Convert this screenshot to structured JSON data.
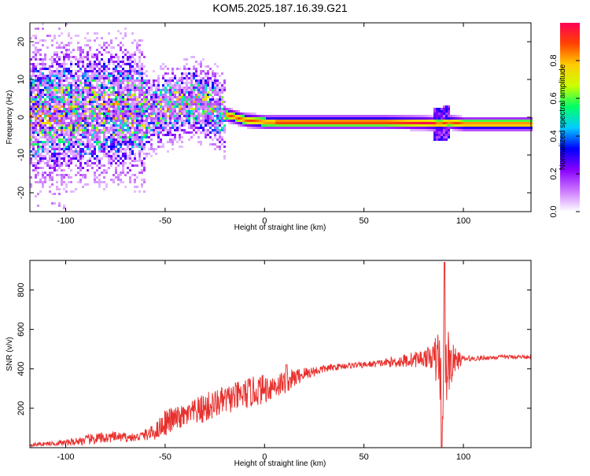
{
  "title": "KOM5.2025.187.16.39.G21",
  "colors": {
    "snr_line": "#e8312e",
    "frame": "#000000",
    "colormap": [
      "#ffffff",
      "#cc77ff",
      "#8800ff",
      "#0000ff",
      "#00ccff",
      "#00ff66",
      "#ccff00",
      "#ffcc00",
      "#ff4400",
      "#ff0055"
    ]
  },
  "chart_data": [
    {
      "id": "spectrogram",
      "type": "heatmap",
      "xlabel": "Height of straight line (km)",
      "ylabel": "Frequency (Hz)",
      "xlim": [
        -118,
        134
      ],
      "ylim": [
        -25,
        25
      ],
      "xticks": [
        -100,
        -50,
        0,
        50,
        100
      ],
      "xtick_labels": [
        "-100",
        "-50",
        "0",
        "50",
        "100"
      ],
      "yticks": [
        -20,
        -10,
        0,
        10,
        20
      ],
      "ytick_labels": [
        "-20",
        "-10",
        "0",
        "10",
        "20"
      ],
      "ridge": {
        "description_points": [
          [
            -118,
            1
          ],
          [
            -100,
            1.5
          ],
          [
            -85,
            2
          ],
          [
            -70,
            2.5
          ],
          [
            -60,
            1
          ],
          [
            -50,
            3
          ],
          [
            -38,
            5
          ],
          [
            -30,
            4
          ],
          [
            -20,
            1
          ],
          [
            -10,
            -0.5
          ],
          [
            0,
            -1
          ],
          [
            20,
            -1
          ],
          [
            40,
            -1
          ],
          [
            60,
            -1
          ],
          [
            80,
            -1.2
          ],
          [
            88,
            -1.5
          ],
          [
            92,
            -1
          ],
          [
            100,
            -1.5
          ],
          [
            120,
            -1.5
          ],
          [
            134,
            -1.5
          ]
        ]
      },
      "colorbar": {
        "label": "Normalized spectral amplitude",
        "range": [
          0,
          1
        ],
        "ticks": [
          0.0,
          0.2,
          0.4,
          0.6,
          0.8
        ],
        "tick_labels": [
          "0.0",
          "0.2",
          "0.4",
          "0.6",
          "0.8"
        ]
      }
    },
    {
      "id": "snr",
      "type": "line",
      "xlabel": "Height of straight line (km)",
      "ylabel": "SNR (v/v)",
      "xlim": [
        -118,
        134
      ],
      "ylim": [
        0,
        950
      ],
      "xticks": [
        -100,
        -50,
        0,
        50,
        100
      ],
      "xtick_labels": [
        "-100",
        "-50",
        "0",
        "50",
        "100"
      ],
      "yticks": [
        200,
        400,
        600,
        800
      ],
      "ytick_labels": [
        "200",
        "400",
        "600",
        "800"
      ],
      "envelope": {
        "x": [
          -118,
          -100,
          -85,
          -75,
          -65,
          -55,
          -50,
          -40,
          -30,
          -20,
          -10,
          0,
          10,
          20,
          30,
          40,
          50,
          60,
          70,
          80,
          85,
          88,
          90,
          92,
          95,
          100,
          110,
          120,
          134
        ],
        "y": [
          15,
          25,
          45,
          55,
          50,
          80,
          130,
          160,
          200,
          240,
          270,
          300,
          330,
          375,
          400,
          415,
          420,
          430,
          440,
          455,
          460,
          430,
          430,
          430,
          440,
          450,
          455,
          460,
          462
        ],
        "noise": [
          8,
          15,
          30,
          25,
          20,
          40,
          70,
          55,
          80,
          70,
          80,
          75,
          60,
          35,
          20,
          15,
          15,
          20,
          35,
          45,
          60,
          250,
          320,
          200,
          80,
          15,
          12,
          10,
          10
        ]
      }
    }
  ]
}
